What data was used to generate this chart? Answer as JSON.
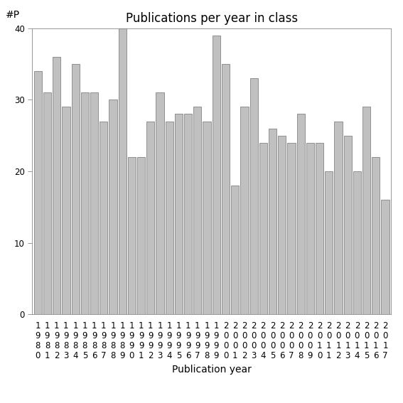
{
  "title": "Publications per year in class",
  "xlabel": "Publication year",
  "ylabel": "#P",
  "years": [
    1980,
    1981,
    1982,
    1983,
    1984,
    1985,
    1986,
    1987,
    1988,
    1989,
    1990,
    1991,
    1992,
    1993,
    1994,
    1995,
    1996,
    1997,
    1998,
    1999,
    2000,
    2001,
    2002,
    2003,
    2004,
    2005,
    2006,
    2007,
    2008,
    2009,
    2010,
    2011,
    2012,
    2013,
    2014,
    2015,
    2016,
    2017
  ],
  "values": [
    34,
    31,
    36,
    29,
    35,
    31,
    31,
    27,
    30,
    40,
    22,
    22,
    27,
    31,
    27,
    28,
    28,
    29,
    27,
    39,
    35,
    18,
    29,
    33,
    24,
    26,
    25,
    24,
    28,
    24,
    24,
    20,
    27,
    25,
    20,
    29,
    22,
    16
  ],
  "bar_color": "#c0c0c0",
  "bar_edge_color": "#555555",
  "bar_edge_width": 0.4,
  "ylim": [
    0,
    40
  ],
  "yticks": [
    0,
    10,
    20,
    30,
    40
  ],
  "title_fontsize": 12,
  "label_fontsize": 10,
  "tick_fontsize": 8.5,
  "background_color": "#ffffff"
}
